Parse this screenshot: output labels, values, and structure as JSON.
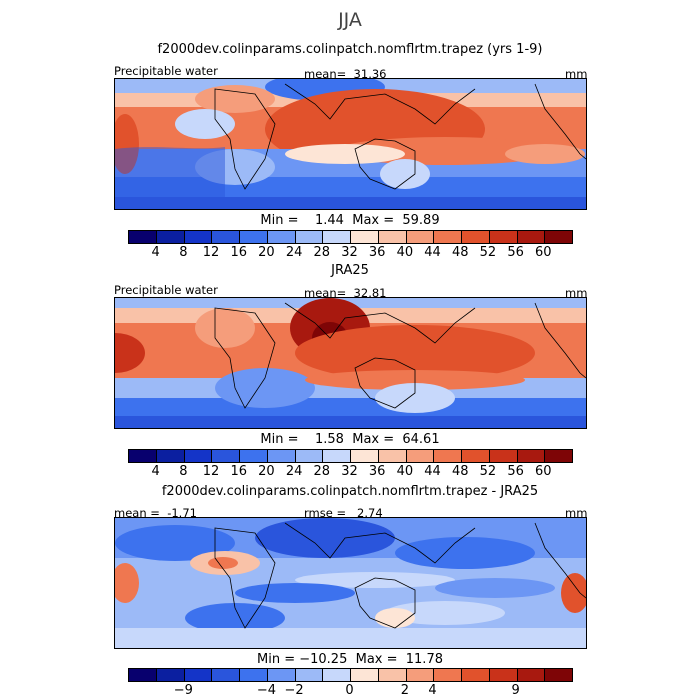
{
  "season_label": "JJA",
  "units": "mm",
  "variable": "Precipitable water",
  "panels": [
    {
      "title": "f2000dev.colinparams.colinpatch.nomflrtm.trapez (yrs 1-9)",
      "left_label": "Precipitable water",
      "stat_label": "mean=  31.36",
      "units": "mm",
      "minmax": "Min =    1.44  Max =  59.89"
    },
    {
      "title": "JRA25",
      "left_label": "Precipitable water",
      "stat_label": "mean=  32.81",
      "units": "mm",
      "minmax": "Min =    1.58  Max =  64.61"
    },
    {
      "title": "f2000dev.colinparams.colinpatch.nomflrtm.trapez - JRA25",
      "left_label": "mean =  -1.71",
      "stat_label": "rmse =   2.74",
      "units": "mm",
      "minmax": "Min = −10.25  Max =  11.78"
    }
  ],
  "chart_data": [
    {
      "type": "heatmap",
      "title": "f2000dev.colinparams.colinpatch.nomflrtm.trapez (yrs 1-9)",
      "variable": "Precipitable water",
      "units": "mm",
      "mean": 31.36,
      "min": 1.44,
      "max": 59.89,
      "colorbar_ticks": [
        "4",
        "8",
        "12",
        "16",
        "20",
        "24",
        "28",
        "32",
        "36",
        "40",
        "44",
        "48",
        "52",
        "56",
        "60"
      ]
    },
    {
      "type": "heatmap",
      "title": "JRA25",
      "variable": "Precipitable water",
      "units": "mm",
      "mean": 32.81,
      "min": 1.58,
      "max": 64.61,
      "colorbar_ticks": [
        "4",
        "8",
        "12",
        "16",
        "20",
        "24",
        "28",
        "32",
        "36",
        "40",
        "44",
        "48",
        "52",
        "56",
        "60"
      ]
    },
    {
      "type": "heatmap",
      "title": "f2000dev.colinparams.colinpatch.nomflrtm.trapez - JRA25",
      "units": "mm",
      "mean": -1.71,
      "rmse": 2.74,
      "min": -10.25,
      "max": 11.78,
      "colorbar_ticks": [
        "−9",
        "−4",
        "−2",
        "0",
        "2",
        "4",
        "9"
      ]
    }
  ],
  "colors": {
    "abs_scale": [
      "#08006e",
      "#0b1fa0",
      "#1434c8",
      "#2a55dc",
      "#3d72ee",
      "#6c96f4",
      "#9cbaf7",
      "#c7d8fb",
      "#fde5d6",
      "#f9c2a8",
      "#f59d7b",
      "#ef7750",
      "#e1522c",
      "#c9321a",
      "#a8190f",
      "#7e0506"
    ],
    "diff_scale": [
      "#08006e",
      "#0b1fa0",
      "#1434c8",
      "#2a55dc",
      "#3d72ee",
      "#6c96f4",
      "#9cbaf7",
      "#c7d8fb",
      "#fde5d6",
      "#f9c2a8",
      "#f59d7b",
      "#ef7750",
      "#e1522c",
      "#c9321a",
      "#a8190f",
      "#7e0506"
    ]
  }
}
